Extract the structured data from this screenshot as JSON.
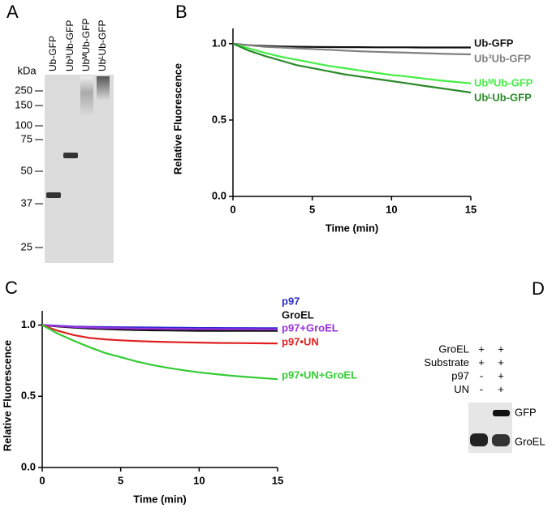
{
  "chart_data": [
    {
      "type": "line",
      "panel_label": "B",
      "x_label": "Time (min)",
      "y_label": "Relative Fluorescence",
      "x": [
        0,
        1,
        2,
        3,
        4,
        5,
        6,
        7,
        8,
        9,
        10,
        11,
        12,
        13,
        14,
        15
      ],
      "xlim": [
        0,
        15
      ],
      "xticks": [
        0,
        5,
        10,
        15
      ],
      "ylim": [
        0,
        1.1
      ],
      "yticks": [
        {
          "value": 0,
          "label": "0.0"
        },
        0.5,
        {
          "value": 1,
          "label": "1.0"
        }
      ],
      "series": [
        {
          "name": "Ub-GFP",
          "color": "#111111",
          "values": [
            1.0,
            0.99,
            0.985,
            0.982,
            0.98,
            0.979,
            0.978,
            0.977,
            0.977,
            0.976,
            0.976,
            0.976,
            0.975,
            0.975,
            0.975,
            0.975
          ]
        },
        {
          "name": "Ub³Ub-GFP",
          "color": "#808080",
          "values": [
            1.0,
            0.99,
            0.98,
            0.975,
            0.97,
            0.965,
            0.96,
            0.955,
            0.95,
            0.947,
            0.944,
            0.941,
            0.938,
            0.935,
            0.932,
            0.93
          ]
        },
        {
          "name": "UbᴹUb-GFP",
          "color": "#44ee44",
          "values": [
            1.0,
            0.97,
            0.94,
            0.915,
            0.895,
            0.875,
            0.855,
            0.84,
            0.825,
            0.81,
            0.795,
            0.785,
            0.772,
            0.76,
            0.75,
            0.74
          ]
        },
        {
          "name": "UbᴸUb-GFP",
          "color": "#2a8a2a",
          "values": [
            1.0,
            0.955,
            0.92,
            0.89,
            0.86,
            0.84,
            0.82,
            0.8,
            0.785,
            0.77,
            0.755,
            0.74,
            0.725,
            0.71,
            0.695,
            0.68
          ]
        }
      ]
    },
    {
      "type": "line",
      "panel_label": "C",
      "x_label": "Time (min)",
      "y_label": "Relative Fluorescence",
      "x": [
        0,
        1,
        2,
        3,
        4,
        5,
        6,
        7,
        8,
        9,
        10,
        11,
        12,
        13,
        14,
        15
      ],
      "xlim": [
        0,
        15
      ],
      "xticks": [
        0,
        5,
        10,
        15
      ],
      "ylim": [
        0,
        1.1
      ],
      "yticks": [
        {
          "value": 0,
          "label": "0.0"
        },
        0.5,
        {
          "value": 1,
          "label": "1.0"
        }
      ],
      "series": [
        {
          "name": "p97",
          "color": "#2a2ad0",
          "values": [
            1.0,
            0.995,
            0.99,
            0.988,
            0.986,
            0.985,
            0.984,
            0.983,
            0.982,
            0.981,
            0.98,
            0.98,
            0.979,
            0.979,
            0.978,
            0.978
          ]
        },
        {
          "name": "GroEL",
          "color": "#111111",
          "values": [
            1.0,
            0.99,
            0.982,
            0.976,
            0.972,
            0.968,
            0.965,
            0.963,
            0.962,
            0.961,
            0.96,
            0.96,
            0.96,
            0.96,
            0.96,
            0.96
          ]
        },
        {
          "name": "p97+GroEL",
          "color": "#9a30e0",
          "values": [
            1.0,
            0.993,
            0.987,
            0.983,
            0.98,
            0.978,
            0.976,
            0.975,
            0.974,
            0.973,
            0.972,
            0.972,
            0.971,
            0.971,
            0.97,
            0.97
          ]
        },
        {
          "name": "p97•UN",
          "color": "#e02020",
          "values": [
            1.0,
            0.96,
            0.93,
            0.91,
            0.9,
            0.893,
            0.888,
            0.884,
            0.881,
            0.879,
            0.877,
            0.875,
            0.874,
            0.873,
            0.872,
            0.871
          ]
        },
        {
          "name": "p97•UN+GroEL",
          "color": "#33cc33",
          "values": [
            1.0,
            0.94,
            0.89,
            0.845,
            0.805,
            0.775,
            0.745,
            0.72,
            0.7,
            0.683,
            0.668,
            0.656,
            0.645,
            0.636,
            0.628,
            0.62
          ]
        }
      ]
    }
  ],
  "panel_a": {
    "label": "A",
    "unit": "kDa",
    "markers": [
      "250",
      "150",
      "100",
      "75",
      "50",
      "37",
      "25"
    ],
    "lanes": [
      "Ub-GFP",
      "Ub³Ub-GFP",
      "UbᴹUb-GFP",
      "UbᴸUb-GFP"
    ]
  },
  "panel_d": {
    "label": "D",
    "rows": [
      {
        "name": "GroEL",
        "signs": [
          "+",
          "+"
        ]
      },
      {
        "name": "Substrate",
        "signs": [
          "+",
          "+"
        ]
      },
      {
        "name": "p97",
        "signs": [
          "-",
          "+"
        ]
      },
      {
        "name": "UN",
        "signs": [
          "-",
          "+"
        ]
      }
    ],
    "bands": [
      "GFP",
      "GroEL"
    ]
  }
}
